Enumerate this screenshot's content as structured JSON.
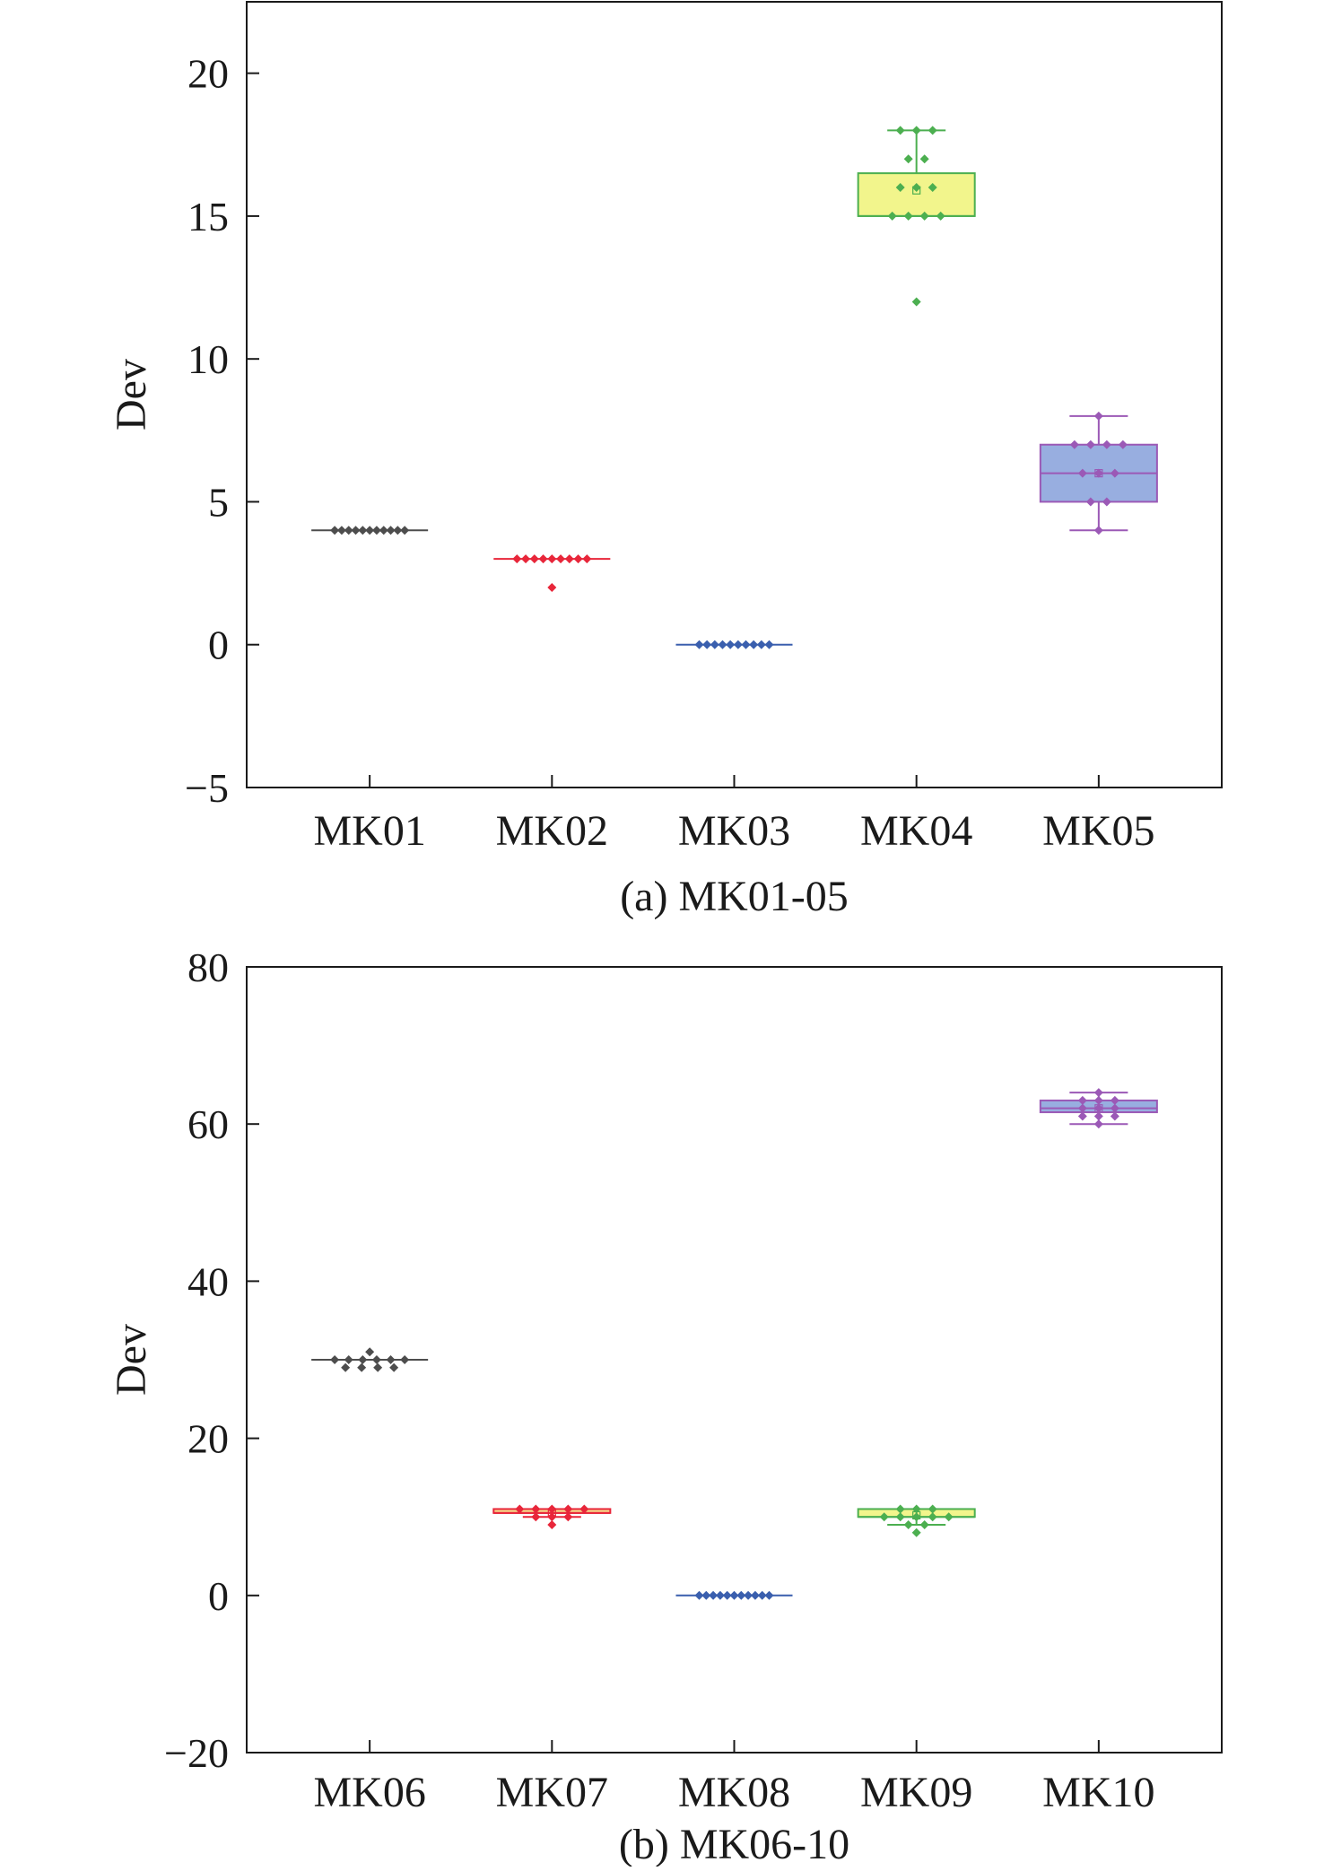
{
  "chart_data": [
    {
      "type": "box",
      "caption": "(a) MK01-05",
      "ylabel": "Dev",
      "ylim": [
        -5,
        22.5
      ],
      "yticks": [
        -5,
        0,
        5,
        10,
        15,
        20
      ],
      "grid": false,
      "categories": [
        "MK01",
        "MK02",
        "MK03",
        "MK04",
        "MK05"
      ],
      "boxes": [
        {
          "category": "MK01",
          "color": "#4d4d4d",
          "fill": "none",
          "q1": 4,
          "median": 4,
          "q3": 4,
          "whisker_low": 4,
          "whisker_high": 4,
          "mean": 4,
          "points": [
            4,
            4,
            4,
            4,
            4,
            4,
            4,
            4,
            4,
            4,
            4
          ]
        },
        {
          "category": "MK02",
          "color": "#e8263a",
          "fill": "none",
          "q1": 3,
          "median": 3,
          "q3": 3,
          "whisker_low": 3,
          "whisker_high": 3,
          "mean": 2.95,
          "points": [
            3,
            3,
            3,
            3,
            3,
            3,
            3,
            3,
            3,
            2
          ]
        },
        {
          "category": "MK03",
          "color": "#3a5fae",
          "fill": "none",
          "q1": 0,
          "median": 0,
          "q3": 0,
          "whisker_low": 0,
          "whisker_high": 0,
          "mean": 0,
          "points": [
            0,
            0,
            0,
            0,
            0,
            0,
            0,
            0,
            0,
            0
          ]
        },
        {
          "category": "MK04",
          "color": "#4caf50",
          "fill": "#f2f58c",
          "q1": 15,
          "median": 15,
          "q3": 16.5,
          "whisker_low": 15,
          "whisker_high": 18,
          "mean": 15.9,
          "points": [
            18,
            18,
            18,
            17,
            17,
            16,
            16,
            16,
            15,
            15,
            15,
            15,
            12
          ]
        },
        {
          "category": "MK05",
          "color": "#9b59b6",
          "fill": "#98aee0",
          "q1": 5,
          "median": 6,
          "q3": 7,
          "whisker_low": 4,
          "whisker_high": 8,
          "mean": 6,
          "points": [
            8,
            7,
            7,
            7,
            7,
            6,
            6,
            6,
            5,
            5,
            4
          ]
        }
      ]
    },
    {
      "type": "box",
      "caption": "(b) MK06-10",
      "ylabel": "Dev",
      "ylim": [
        -20,
        80
      ],
      "yticks": [
        -20,
        0,
        20,
        40,
        60,
        80
      ],
      "grid": false,
      "categories": [
        "MK06",
        "MK07",
        "MK08",
        "MK09",
        "MK10"
      ],
      "boxes": [
        {
          "category": "MK06",
          "color": "#4d4d4d",
          "fill": "none",
          "q1": 30,
          "median": 30,
          "q3": 30,
          "whisker_low": 30,
          "whisker_high": 30,
          "mean": 30,
          "points": [
            31,
            30,
            30,
            30,
            30,
            30,
            30,
            29,
            29,
            29,
            29
          ]
        },
        {
          "category": "MK07",
          "color": "#e8263a",
          "fill": "#f6d88a",
          "q1": 10.5,
          "median": 10.5,
          "q3": 11,
          "whisker_low": 10,
          "whisker_high": 11,
          "mean": 10.6,
          "points": [
            11,
            11,
            11,
            11,
            11,
            10,
            10,
            10,
            9
          ]
        },
        {
          "category": "MK08",
          "color": "#3a5fae",
          "fill": "none",
          "q1": 0,
          "median": 0,
          "q3": 0,
          "whisker_low": 0,
          "whisker_high": 0,
          "mean": 0,
          "points": [
            0,
            0,
            0,
            0,
            0,
            0,
            0,
            0,
            0,
            0,
            0
          ]
        },
        {
          "category": "MK09",
          "color": "#4caf50",
          "fill": "#f2f58c",
          "q1": 10,
          "median": 10,
          "q3": 11,
          "whisker_low": 9,
          "whisker_high": 11,
          "mean": 10.2,
          "points": [
            11,
            11,
            11,
            10,
            10,
            10,
            10,
            10,
            9,
            9,
            8
          ]
        },
        {
          "category": "MK10",
          "color": "#9b59b6",
          "fill": "#98aee0",
          "q1": 61.5,
          "median": 62,
          "q3": 63,
          "whisker_low": 60,
          "whisker_high": 64,
          "mean": 62,
          "points": [
            64,
            63,
            63,
            63,
            62,
            62,
            62,
            61,
            61,
            61,
            60
          ]
        }
      ]
    }
  ]
}
